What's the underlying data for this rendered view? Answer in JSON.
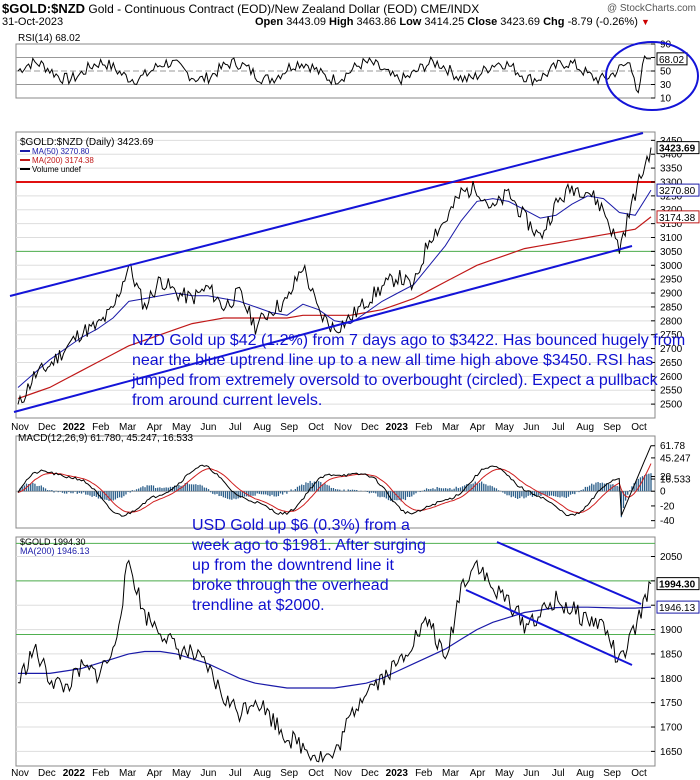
{
  "header": {
    "symbol": "$GOLD:$NZD",
    "title": "Gold - Continuous Contract (EOD)/New Zealand Dollar (EOD)",
    "exchange": "CME/INDX",
    "date": "31-Oct-2023",
    "open_label": "Open",
    "open": "3443.09",
    "high_label": "High",
    "high": "3463.86",
    "low_label": "Low",
    "low": "3414.25",
    "close_label": "Close",
    "close": "3423.69",
    "chg_label": "Chg",
    "chg": "-8.79 (-0.26%)",
    "watermark": "@ StockCharts.com"
  },
  "colors": {
    "price": "#000000",
    "ma50": "#1a1aa8",
    "ma200": "#c01818",
    "trendline": "#1414d8",
    "resistance": "#e01010",
    "annotation": "#1010d0",
    "macd_hist": "#2c5f8a",
    "green_line": "#50b050"
  },
  "annotations": {
    "nzd": "NZD Gold up $42 (1.2%) from 7 days ago to $3422. Has bounced hugely from near the blue uptrend line up to a new all time high above $3450. RSI has jumped from extremely oversold to overbought (circled). Expect a pullback from around current levels.",
    "usd": "USD Gold up $6 (0.3%) from a week ago to $1981. After surging up from the downtrend line it broke through the overhead trendline at $2000."
  },
  "chart_data": [
    {
      "type": "line",
      "panel": "rsi",
      "label": "RSI(14) 68.02",
      "last_value": 68.02,
      "ylim": [
        10,
        90
      ],
      "ticks": [
        90,
        70,
        50,
        30,
        10
      ],
      "reference_lines": [
        70,
        50,
        30
      ],
      "recent_values": [
        55,
        62,
        48,
        40,
        22,
        18,
        35,
        60,
        72,
        68.02
      ],
      "highlight": "recent oversold to overbought move circled"
    },
    {
      "type": "line",
      "panel": "price",
      "label": "$GOLD:$NZD (Daily) 3423.69",
      "ylim": [
        2450,
        3480
      ],
      "ticks": [
        3450,
        3400,
        3350,
        3300,
        3250,
        3200,
        3150,
        3100,
        3050,
        3000,
        2950,
        2900,
        2850,
        2800,
        2750,
        2700,
        2650,
        2600,
        2550,
        2500
      ],
      "x_labels": [
        "Nov",
        "Dec",
        "2022",
        "Feb",
        "Mar",
        "Apr",
        "May",
        "Jun",
        "Jul",
        "Aug",
        "Sep",
        "Oct",
        "Nov",
        "Dec",
        "2023",
        "Feb",
        "Mar",
        "Apr",
        "May",
        "Jun",
        "Jul",
        "Aug",
        "Sep",
        "Oct"
      ],
      "series": [
        {
          "name": "$GOLD:$NZD",
          "last": 3423.69,
          "values": [
            2490,
            2600,
            2640,
            2700,
            2760,
            2780,
            2840,
            3000,
            2850,
            2950,
            2900,
            2880,
            2920,
            2850,
            2900,
            2780,
            2840,
            2870,
            3000,
            2830,
            2770,
            2810,
            2870,
            2920,
            2960,
            2920,
            3100,
            3160,
            3260,
            3280,
            3200,
            3260,
            3170,
            3100,
            3220,
            3280,
            3270,
            3200,
            3060,
            3260,
            3423.69
          ]
        },
        {
          "name": "MA(50)",
          "last": 3270.8,
          "values": [
            2560,
            2610,
            2660,
            2700,
            2740,
            2770,
            2810,
            2870,
            2880,
            2890,
            2900,
            2890,
            2890,
            2880,
            2870,
            2850,
            2830,
            2820,
            2860,
            2840,
            2800,
            2790,
            2830,
            2870,
            2900,
            2930,
            3000,
            3070,
            3160,
            3230,
            3240,
            3230,
            3200,
            3170,
            3180,
            3220,
            3250,
            3240,
            3190,
            3180,
            3270.8
          ]
        },
        {
          "name": "MA(200)",
          "last": 3174.38,
          "values": [
            2520,
            2540,
            2560,
            2590,
            2620,
            2650,
            2680,
            2710,
            2730,
            2750,
            2770,
            2790,
            2800,
            2810,
            2810,
            2810,
            2810,
            2810,
            2820,
            2820,
            2820,
            2820,
            2830,
            2840,
            2860,
            2880,
            2910,
            2940,
            2970,
            3000,
            3020,
            3040,
            3060,
            3070,
            3080,
            3090,
            3100,
            3110,
            3120,
            3130,
            3174.38
          ]
        }
      ],
      "reference_lines": [
        {
          "value": 3300,
          "color": "#e01010"
        },
        {
          "value": 3050,
          "color": "#50b050"
        }
      ],
      "legend": [
        "$GOLD:$NZD (Daily) 3423.69",
        "MA(50) 3270.80",
        "MA(200) 3174.38",
        "Volume undef"
      ]
    },
    {
      "type": "line",
      "panel": "macd",
      "label": "MACD(12,26,9) 61.780, 45.247, 16.533",
      "ylim": [
        -50,
        75
      ],
      "ticks": [
        61.78,
        45.247,
        20,
        16.533,
        0,
        -20,
        -40
      ],
      "series": [
        {
          "name": "MACD",
          "last": 61.78
        },
        {
          "name": "Signal",
          "last": 45.247
        },
        {
          "name": "Histogram",
          "last": 16.533
        }
      ]
    },
    {
      "type": "line",
      "panel": "usd_gold",
      "label": "$GOLD 1994.30",
      "ylim": [
        1620,
        2090
      ],
      "ticks": [
        2050,
        2000,
        1994.3,
        1950,
        1946.13,
        1900,
        1850,
        1800,
        1750,
        1700,
        1650
      ],
      "x_labels": [
        "Nov",
        "Dec",
        "2022",
        "Feb",
        "Mar",
        "Apr",
        "May",
        "Jun",
        "Jul",
        "Aug",
        "Sep",
        "Oct",
        "Nov",
        "Dec",
        "2023",
        "Feb",
        "Mar",
        "Apr",
        "May",
        "Jun",
        "Jul",
        "Aug",
        "Sep",
        "Oct"
      ],
      "series": [
        {
          "name": "$GOLD",
          "last": 1994.3,
          "values": [
            1790,
            1860,
            1800,
            1780,
            1820,
            1810,
            1850,
            2040,
            1930,
            1900,
            1860,
            1850,
            1820,
            1760,
            1730,
            1760,
            1720,
            1680,
            1660,
            1640,
            1640,
            1720,
            1780,
            1800,
            1830,
            1880,
            1920,
            1830,
            1990,
            2040,
            1980,
            1960,
            1910,
            1930,
            1960,
            1940,
            1920,
            1910,
            1830,
            1900,
            1994.3
          ]
        },
        {
          "name": "MA(200)",
          "last": 1946.13,
          "values": [
            1810,
            1810,
            1810,
            1815,
            1820,
            1830,
            1840,
            1850,
            1855,
            1855,
            1850,
            1840,
            1830,
            1815,
            1800,
            1790,
            1785,
            1780,
            1780,
            1780,
            1780,
            1785,
            1790,
            1800,
            1815,
            1830,
            1845,
            1860,
            1880,
            1900,
            1915,
            1925,
            1935,
            1940,
            1945,
            1946,
            1946,
            1945,
            1944,
            1944,
            1946.13
          ]
        }
      ],
      "reference_lines": [
        {
          "value": 2077,
          "color": "#50b050"
        },
        {
          "value": 2000,
          "color": "#50b050"
        },
        {
          "value": 1890,
          "color": "#50b050"
        }
      ],
      "legend": [
        "$GOLD 1994.30",
        "MA(200) 1946.13"
      ]
    }
  ]
}
